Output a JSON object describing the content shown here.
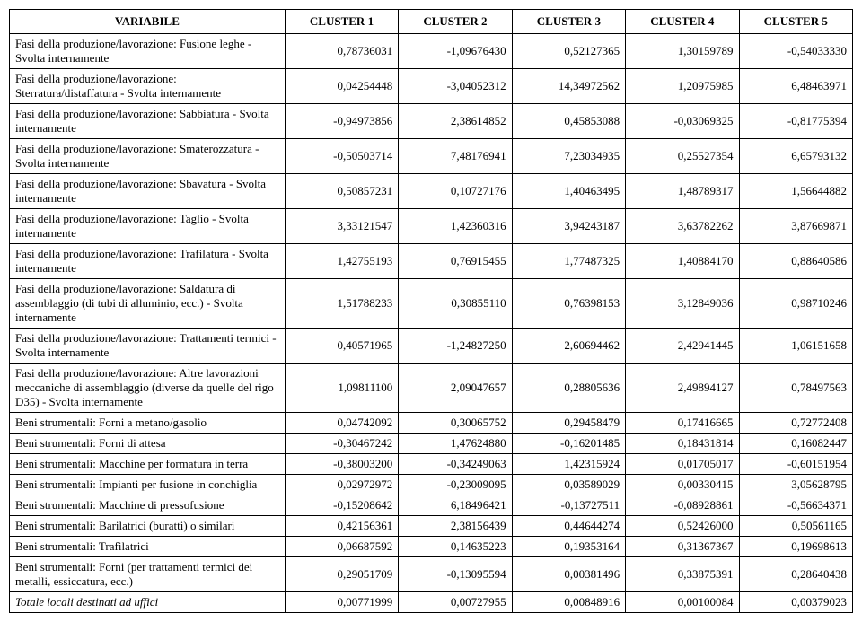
{
  "table": {
    "headers": [
      "VARIABILE",
      "CLUSTER 1",
      "CLUSTER 2",
      "CLUSTER 3",
      "CLUSTER 4",
      "CLUSTER 5"
    ],
    "rows": [
      {
        "label": "Fasi della produzione/lavorazione: Fusione leghe - Svolta internamente",
        "values": [
          "0,78736031",
          "-1,09676430",
          "0,52127365",
          "1,30159789",
          "-0,54033330"
        ],
        "italic": false
      },
      {
        "label": "Fasi della produzione/lavorazione: Sterratura/distaffatura - Svolta internamente",
        "values": [
          "0,04254448",
          "-3,04052312",
          "14,34972562",
          "1,20975985",
          "6,48463971"
        ],
        "italic": false
      },
      {
        "label": "Fasi della produzione/lavorazione: Sabbiatura - Svolta internamente",
        "values": [
          "-0,94973856",
          "2,38614852",
          "0,45853088",
          "-0,03069325",
          "-0,81775394"
        ],
        "italic": false
      },
      {
        "label": "Fasi della produzione/lavorazione: Smaterozzatura - Svolta internamente",
        "values": [
          "-0,50503714",
          "7,48176941",
          "7,23034935",
          "0,25527354",
          "6,65793132"
        ],
        "italic": false
      },
      {
        "label": "Fasi della produzione/lavorazione: Sbavatura - Svolta internamente",
        "values": [
          "0,50857231",
          "0,10727176",
          "1,40463495",
          "1,48789317",
          "1,56644882"
        ],
        "italic": false
      },
      {
        "label": "Fasi della produzione/lavorazione: Taglio - Svolta internamente",
        "values": [
          "3,33121547",
          "1,42360316",
          "3,94243187",
          "3,63782262",
          "3,87669871"
        ],
        "italic": false
      },
      {
        "label": "Fasi della produzione/lavorazione: Trafilatura - Svolta internamente",
        "values": [
          "1,42755193",
          "0,76915455",
          "1,77487325",
          "1,40884170",
          "0,88640586"
        ],
        "italic": false
      },
      {
        "label": "Fasi della produzione/lavorazione: Saldatura di assemblaggio (di tubi di alluminio, ecc.) - Svolta internamente",
        "values": [
          "1,51788233",
          "0,30855110",
          "0,76398153",
          "3,12849036",
          "0,98710246"
        ],
        "italic": false
      },
      {
        "label": "Fasi della produzione/lavorazione: Trattamenti termici - Svolta internamente",
        "values": [
          "0,40571965",
          "-1,24827250",
          "2,60694462",
          "2,42941445",
          "1,06151658"
        ],
        "italic": false
      },
      {
        "label": "Fasi della produzione/lavorazione: Altre lavorazioni meccaniche di assemblaggio  (diverse da quelle del rigo D35) - Svolta internamente",
        "values": [
          "1,09811100",
          "2,09047657",
          "0,28805636",
          "2,49894127",
          "0,78497563"
        ],
        "italic": false
      },
      {
        "label": "Beni strumentali: Forni a metano/gasolio",
        "values": [
          "0,04742092",
          "0,30065752",
          "0,29458479",
          "0,17416665",
          "0,72772408"
        ],
        "italic": false
      },
      {
        "label": "Beni strumentali: Forni di attesa",
        "values": [
          "-0,30467242",
          "1,47624880",
          "-0,16201485",
          "0,18431814",
          "0,16082447"
        ],
        "italic": false
      },
      {
        "label": "Beni strumentali: Macchine per formatura in terra",
        "values": [
          "-0,38003200",
          "-0,34249063",
          "1,42315924",
          "0,01705017",
          "-0,60151954"
        ],
        "italic": false
      },
      {
        "label": "Beni strumentali: Impianti per fusione in conchiglia",
        "values": [
          "0,02972972",
          "-0,23009095",
          "0,03589029",
          "0,00330415",
          "3,05628795"
        ],
        "italic": false
      },
      {
        "label": "Beni strumentali: Macchine di pressofusione",
        "values": [
          "-0,15208642",
          "6,18496421",
          "-0,13727511",
          "-0,08928861",
          "-0,56634371"
        ],
        "italic": false
      },
      {
        "label": "Beni strumentali: Barilatrici (buratti) o similari",
        "values": [
          "0,42156361",
          "2,38156439",
          "0,44644274",
          "0,52426000",
          "0,50561165"
        ],
        "italic": false
      },
      {
        "label": "Beni strumentali: Trafilatrici",
        "values": [
          "0,06687592",
          "0,14635223",
          "0,19353164",
          "0,31367367",
          "0,19698613"
        ],
        "italic": false
      },
      {
        "label": "Beni strumentali: Forni (per trattamenti termici dei metalli, essiccatura, ecc.)",
        "values": [
          "0,29051709",
          "-0,13095594",
          "0,00381496",
          "0,33875391",
          "0,28640438"
        ],
        "italic": false
      },
      {
        "label": "Totale locali destinati ad uffici",
        "values": [
          "0,00771999",
          "0,00727955",
          "0,00848916",
          "0,00100084",
          "0,00379023"
        ],
        "italic": true
      }
    ]
  }
}
